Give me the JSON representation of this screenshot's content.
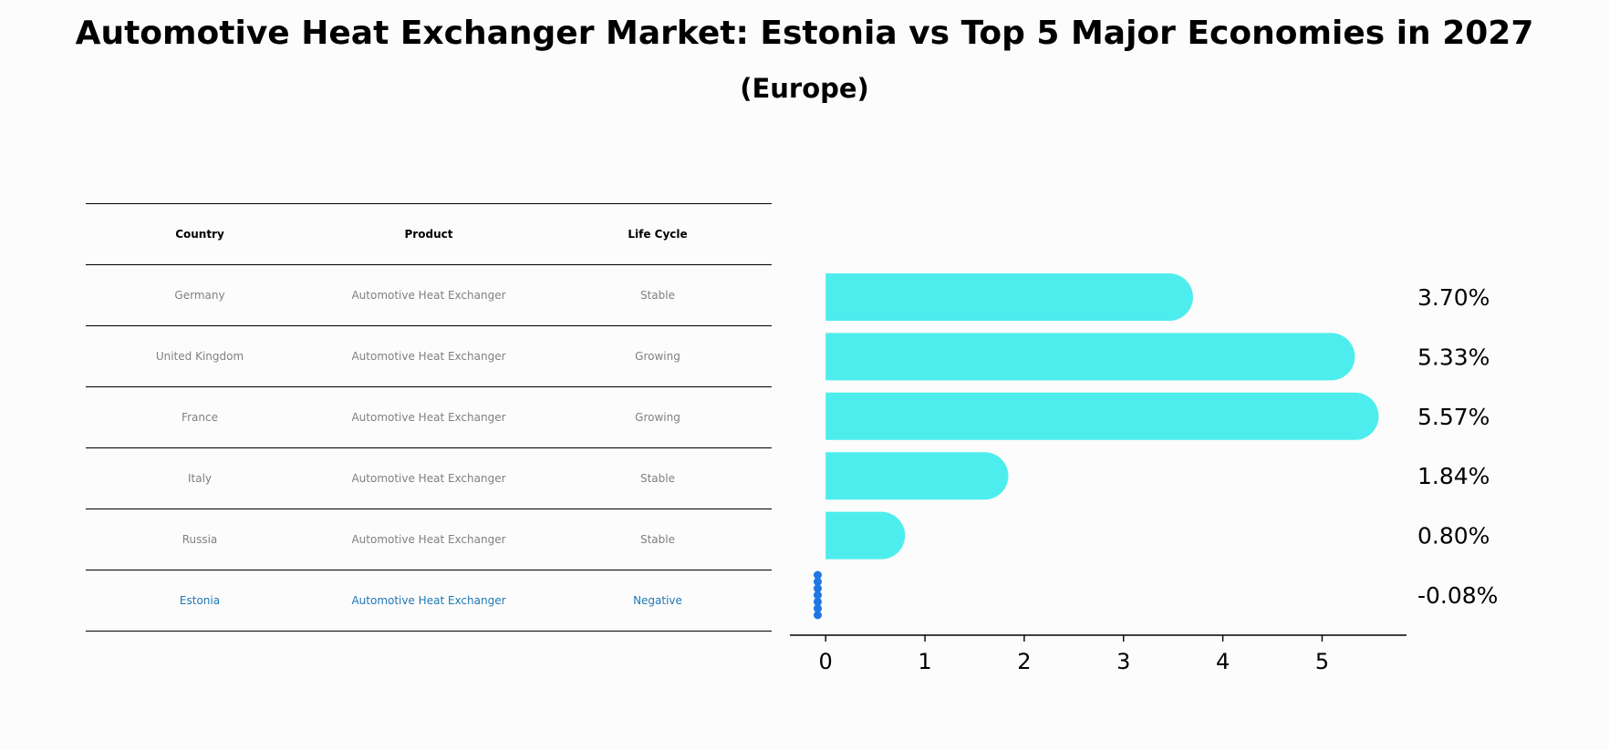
{
  "title": "Automotive Heat Exchanger Market: Estonia vs Top 5 Major Economies in 2027",
  "subtitle": "(Europe)",
  "table": {
    "headers": [
      "Country",
      "Product",
      "Life Cycle"
    ],
    "rows": [
      [
        "Germany",
        "Automotive Heat Exchanger",
        "Stable"
      ],
      [
        "United Kingdom",
        "Automotive Heat Exchanger",
        "Growing"
      ],
      [
        "France",
        "Automotive Heat Exchanger",
        "Growing"
      ],
      [
        "Italy",
        "Automotive Heat Exchanger",
        "Stable"
      ],
      [
        "Russia",
        "Automotive Heat Exchanger",
        "Stable"
      ],
      [
        "Estonia",
        "Automotive Heat Exchanger",
        "Negative"
      ]
    ],
    "highlight_row": "Estonia",
    "text_color": "#808080",
    "highlight_color": "#1f77b4"
  },
  "chart_data": {
    "type": "bar",
    "orientation": "horizontal",
    "categories": [
      "Germany",
      "United Kingdom",
      "France",
      "Italy",
      "Russia",
      "Estonia"
    ],
    "values": [
      3.7,
      5.33,
      5.57,
      1.84,
      0.8,
      -0.08
    ],
    "value_labels": [
      "3.70%",
      "5.33%",
      "5.57%",
      "1.84%",
      "0.80%",
      "-0.08%"
    ],
    "xlim": [
      -0.36,
      5.85
    ],
    "xticks": [
      0,
      1,
      2,
      3,
      4,
      5
    ],
    "bar_color": "#4eeded",
    "negative_marker_color": "#1f77e4",
    "grid": false
  }
}
